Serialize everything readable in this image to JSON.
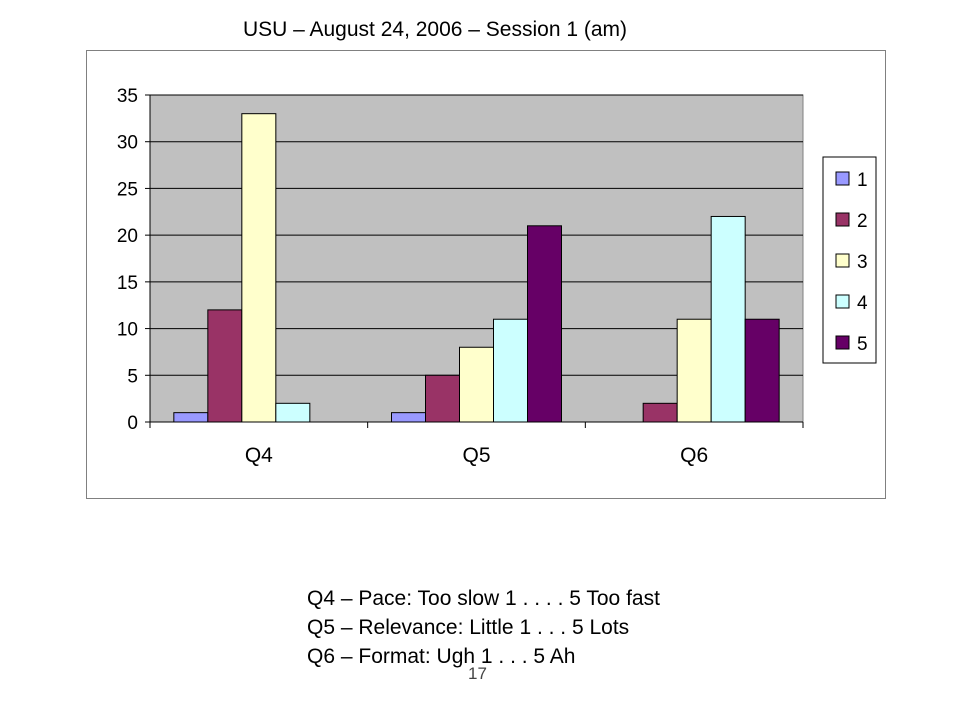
{
  "title": "USU – August 24, 2006 – Session 1 (am)",
  "chart_data": {
    "type": "bar",
    "title": "",
    "xlabel": "",
    "ylabel": "",
    "categories": [
      "Q4",
      "Q5",
      "Q6"
    ],
    "ylim": [
      0,
      35
    ],
    "yticks": [
      0,
      5,
      10,
      15,
      20,
      25,
      30,
      35
    ],
    "grid": true,
    "legend_position": "right",
    "series": [
      {
        "name": "1",
        "values": [
          1,
          1,
          0
        ],
        "color": "#9999ff"
      },
      {
        "name": "2",
        "values": [
          12,
          5,
          2
        ],
        "color": "#993366"
      },
      {
        "name": "3",
        "values": [
          33,
          8,
          11
        ],
        "color": "#ffffcc"
      },
      {
        "name": "4",
        "values": [
          2,
          11,
          22
        ],
        "color": "#ccffff"
      },
      {
        "name": "5",
        "values": [
          0,
          21,
          11
        ],
        "color": "#660066"
      }
    ],
    "plot_background": "#c0c0c0"
  },
  "notes": [
    "Q4 – Pace: Too slow 1 . . . . 5 Too fast",
    "Q5 – Relevance: Little 1 . . . 5 Lots",
    "Q6 – Format: Ugh 1 . . . 5 Ah"
  ],
  "page_number": "17"
}
